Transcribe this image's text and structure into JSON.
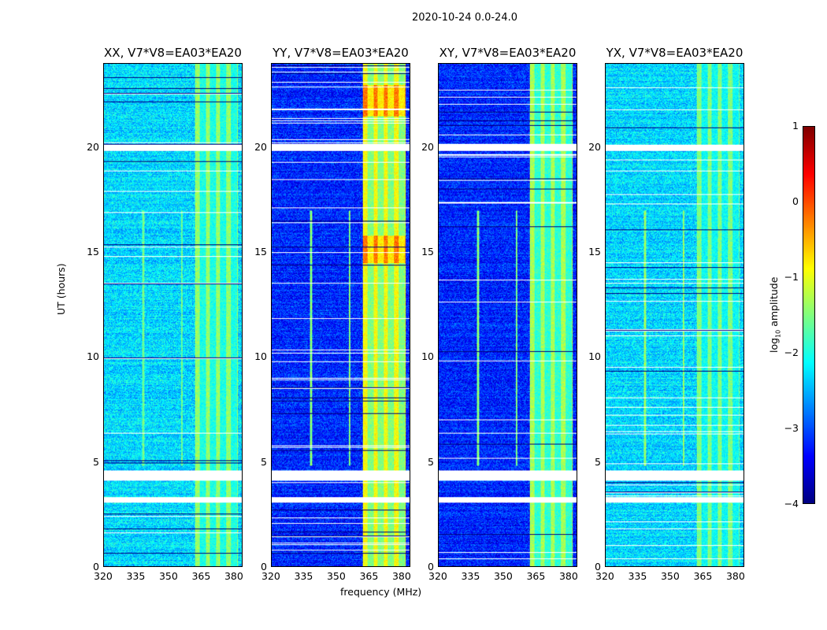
{
  "chart_data": {
    "type": "heatmap",
    "title": "2020-10-24 0.0-24.0",
    "xlabel": "frequency (MHz)",
    "ylabel": "UT (hours)",
    "xlim": [
      320,
      384
    ],
    "ylim": [
      0,
      24
    ],
    "xticks": [
      "320",
      "335",
      "350",
      "365",
      "380"
    ],
    "xtick_values": [
      320,
      335,
      350,
      365,
      380
    ],
    "yticks": [
      "0",
      "5",
      "10",
      "15",
      "20"
    ],
    "ytick_values": [
      0,
      5,
      10,
      15,
      20
    ],
    "colorbar": {
      "label": "log10 amplitude",
      "label_main": "log",
      "label_sub": "10",
      "label_tail": " amplitude",
      "colormap": "jet",
      "range": [
        -4,
        1
      ],
      "ticks": [
        "1",
        "0",
        "−1",
        "−2",
        "−3",
        "−4"
      ],
      "tick_values": [
        1,
        0,
        -1,
        -2,
        -3,
        -4
      ]
    },
    "flagged_time_ranges_hours": [
      [
        19.85,
        20.15
      ],
      [
        4.1,
        4.6
      ],
      [
        3.05,
        3.3
      ]
    ],
    "rfi_band_MHz": [
      362,
      382
    ],
    "rfi_lines_MHz": [
      338,
      356
    ],
    "rfi_lines_time_hours": [
      4.8,
      17.0
    ],
    "panels": [
      {
        "title": "XX, V7*V8=EA03*EA20",
        "base_level": -2.3,
        "band_level": -1.7,
        "line_level": -1.6
      },
      {
        "title": "YY, V7*V8=EA03*EA20",
        "base_level": -3.2,
        "band_level": -1.2,
        "line_level": -1.5
      },
      {
        "title": "XY, V7*V8=EA03*EA20",
        "base_level": -3.2,
        "band_level": -1.6,
        "line_level": -1.5
      },
      {
        "title": "YX, V7*V8=EA03*EA20",
        "base_level": -2.3,
        "band_level": -1.8,
        "line_level": -1.4
      }
    ]
  }
}
